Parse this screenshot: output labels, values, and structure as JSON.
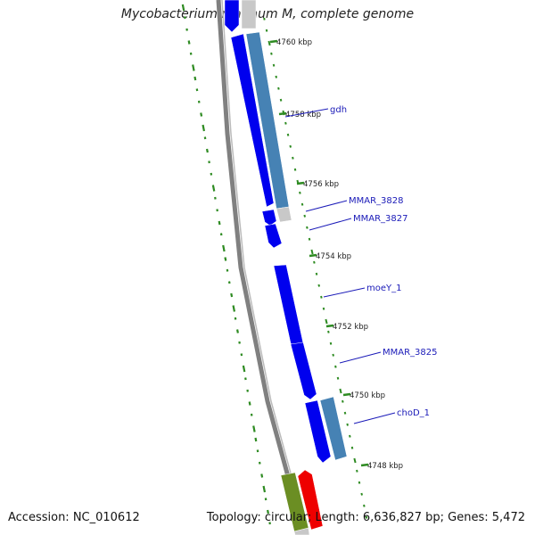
{
  "title": "Mycobacterium marinum M, complete genome",
  "footer": {
    "accession": "Accession: NC_010612",
    "stats": "Topology: circular; Length: 6,636,827 bp; Genes: 5,472"
  },
  "colors": {
    "backbone": "#808080",
    "cds_forward": "#0000ee",
    "cds_reverse": "#4682b4",
    "gene_track": "#c8c8c8",
    "gc_skew": "#2e8b22",
    "label": "#1a1ab8",
    "rrna": "#ee0000",
    "trna": "#6b8e23"
  },
  "ticks": [
    {
      "kbp": 4760,
      "label": "4760 kbp"
    },
    {
      "kbp": 4758,
      "label": "4758 kbp"
    },
    {
      "kbp": 4756,
      "label": "4756 kbp"
    },
    {
      "kbp": 4754,
      "label": "4754 kbp"
    },
    {
      "kbp": 4752,
      "label": "4752 kbp"
    },
    {
      "kbp": 4750,
      "label": "4750 kbp"
    },
    {
      "kbp": 4748,
      "label": "4748 kbp"
    }
  ],
  "gene_labels": [
    "gdh",
    "MMAR_3828",
    "MMAR_3827",
    "moeY_1",
    "MMAR_3825",
    "choD_1"
  ]
}
